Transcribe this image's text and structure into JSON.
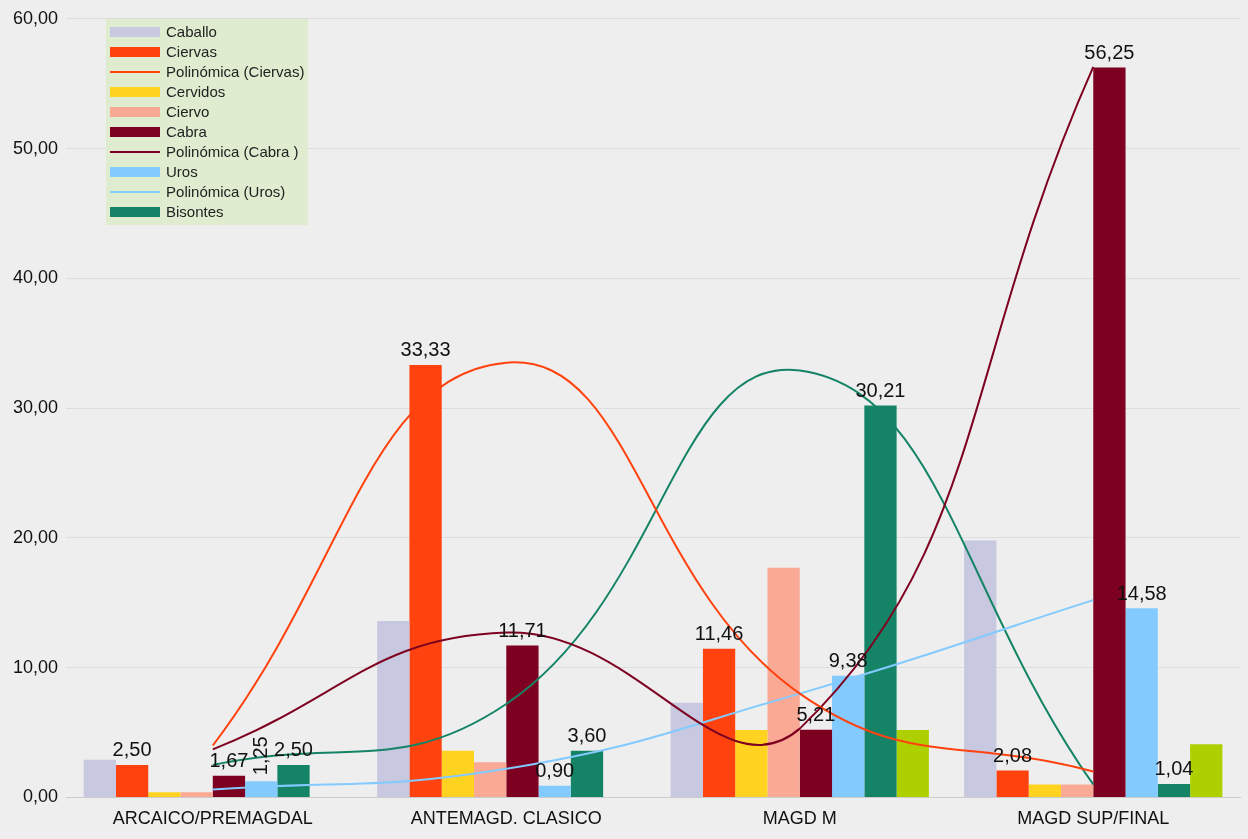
{
  "chart_data": {
    "type": "bar",
    "categories": [
      "ARCAICO/PREMAGDAL",
      "ANTEMAGD. CLASICO",
      "MAGD M",
      "MAGD SUP/FINAL"
    ],
    "series": [
      {
        "name": "Caballo",
        "color": "#c8c8e0",
        "values": [
          2.9,
          13.6,
          7.3,
          19.8
        ]
      },
      {
        "name": "Ciervas",
        "color": "#ff420e",
        "values": [
          2.5,
          33.33,
          11.46,
          2.08
        ],
        "value_labels": [
          "2,50",
          "33,33",
          "11,46",
          "2,08"
        ]
      },
      {
        "name": "Polinómica (Ciervas)",
        "type": "line",
        "color": "#ff420e",
        "values": [
          4,
          33.5,
          8,
          2
        ]
      },
      {
        "name": "Cervidos",
        "color": "#ffd320",
        "values": [
          0.4,
          3.6,
          5.2,
          1.0
        ]
      },
      {
        "name": "Ciervo",
        "color": "#f9a994",
        "values": [
          0.4,
          2.7,
          17.7,
          1.0
        ]
      },
      {
        "name": "Cabra",
        "color": "#7e0021",
        "values": [
          1.67,
          11.71,
          5.21,
          56.25
        ],
        "value_labels": [
          "1,67",
          "11,71",
          "5,21",
          "56,25"
        ]
      },
      {
        "name": "Polinómica (Cabra )",
        "type": "line",
        "color": "#7e0021",
        "values": [
          3.7,
          12.7,
          5.3,
          56.3
        ]
      },
      {
        "name": "Uros",
        "color": "#83caff",
        "values": [
          1.25,
          0.9,
          9.38,
          14.58
        ],
        "value_labels": [
          "1,25",
          "0,90",
          "9,38",
          "14,58"
        ]
      },
      {
        "name": "Polinómica (Uros)",
        "type": "line",
        "color": "#83caff",
        "values": [
          0.6,
          2.2,
          8,
          15.2
        ]
      },
      {
        "name": "Bisontes",
        "color": "#158466",
        "values": [
          2.5,
          3.6,
          30.21,
          1.04
        ],
        "value_labels": [
          "2,50",
          "3,60",
          "30,21",
          "1,04"
        ]
      },
      {
        "color": "#aecf00",
        "values": [
          null,
          null,
          5.2,
          4.1
        ]
      },
      {
        "type": "line",
        "color": "#158466",
        "values": [
          2.5,
          7.2,
          32.9,
          1
        ]
      }
    ],
    "ylim": [
      0,
      60
    ],
    "yticks": [
      {
        "value": 0,
        "label": "0,00"
      },
      {
        "value": 10,
        "label": "10,00"
      },
      {
        "value": 20,
        "label": "20,00"
      },
      {
        "value": 30,
        "label": "30,00"
      },
      {
        "value": 40,
        "label": "40,00"
      },
      {
        "value": 50,
        "label": "50,00"
      },
      {
        "value": 60,
        "label": "60,00"
      }
    ],
    "grid": "y",
    "legend": "top left"
  }
}
